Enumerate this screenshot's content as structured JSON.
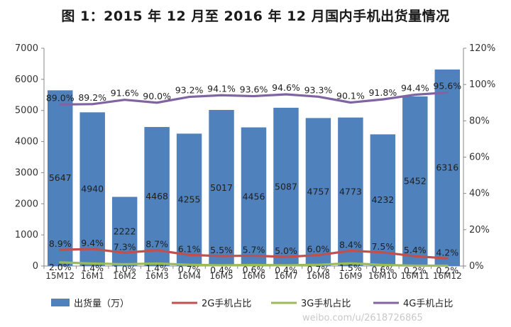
{
  "title": "图 1：2015 年 12 月至 2016 年 12 月国内手机出货量情况",
  "watermark": "weibo.com/u/2618726865",
  "chart_data": {
    "type": "bar",
    "categories": [
      "15M12",
      "16M1",
      "16M2",
      "16M3",
      "16M4",
      "16M5",
      "16M6",
      "16M7",
      "16M8",
      "16M9",
      "16M10",
      "16M11",
      "16M12"
    ],
    "y_left": {
      "range": [
        0,
        7000
      ],
      "ticks": [
        "0",
        "1000",
        "2000",
        "3000",
        "4000",
        "5000",
        "6000",
        "7000"
      ]
    },
    "y_right": {
      "range": [
        0,
        120
      ],
      "ticks": [
        "0%",
        "20%",
        "40%",
        "60%",
        "80%",
        "100%",
        "120%"
      ]
    },
    "grid": false,
    "legend_position": "bottom",
    "series": [
      {
        "name": "出货量（万）",
        "type": "bar",
        "axis": "left",
        "color": "#4f81bd",
        "values": [
          5647,
          4940,
          2222,
          4468,
          4255,
          5017,
          4456,
          5087,
          4757,
          4773,
          4232,
          5452,
          6316
        ],
        "labels": [
          "5647",
          "4940",
          "2222",
          "4468",
          "4255",
          "5017",
          "4456",
          "5087",
          "4757",
          "4773",
          "4232",
          "5452",
          "6316"
        ]
      },
      {
        "name": "2G手机占比",
        "type": "line",
        "axis": "right",
        "color": "#c0504d",
        "values": [
          8.9,
          9.4,
          7.3,
          8.7,
          6.1,
          5.5,
          5.7,
          5.0,
          6.0,
          8.4,
          7.5,
          5.4,
          4.2
        ],
        "labels": [
          "8.9%",
          "9.4%",
          "7.3%",
          "8.7%",
          "6.1%",
          "5.5%",
          "5.7%",
          "5.0%",
          "6.0%",
          "8.4%",
          "7.5%",
          "5.4%",
          "4.2%"
        ]
      },
      {
        "name": "3G手机占比",
        "type": "line",
        "axis": "right",
        "color": "#9bbb59",
        "values": [
          2.0,
          1.4,
          1.0,
          1.4,
          0.7,
          0.4,
          0.6,
          0.4,
          0.7,
          1.5,
          0.6,
          0.2,
          0.2
        ],
        "labels": [
          "2.0%",
          "1.4%",
          "1.0%",
          "1.4%",
          "0.7%",
          "0.4%",
          "0.6%",
          "0.4%",
          "0.7%",
          "1.5%",
          "0.6%",
          "0.2%",
          "0.2%"
        ]
      },
      {
        "name": "4G手机占比",
        "type": "line",
        "axis": "right",
        "color": "#8064a2",
        "values": [
          89.0,
          89.2,
          91.6,
          90.0,
          93.2,
          94.1,
          93.6,
          94.6,
          93.3,
          90.1,
          91.8,
          94.4,
          95.6
        ],
        "labels": [
          "89.0%",
          "89.2%",
          "91.6%",
          "90.0%",
          "93.2%",
          "94.1%",
          "93.6%",
          "94.6%",
          "93.3%",
          "90.1%",
          "91.8%",
          "94.4%",
          "95.6%"
        ]
      }
    ]
  }
}
